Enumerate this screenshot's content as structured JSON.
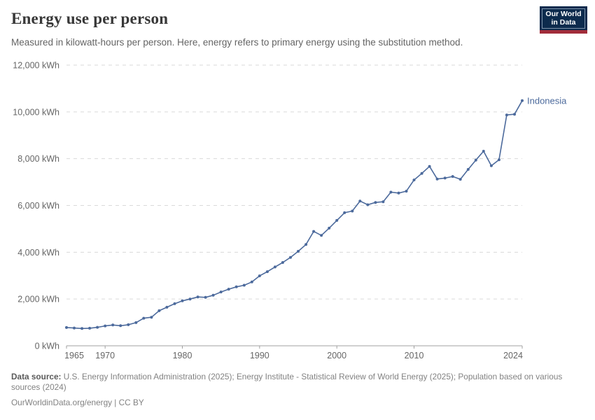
{
  "header": {
    "title": "Energy use per person",
    "subtitle": "Measured in kilowatt-hours per person. Here, energy refers to primary energy using the substitution method.",
    "logo_line1": "Our World",
    "logo_line2": "in Data"
  },
  "chart_data": {
    "type": "line",
    "title": "Energy use per person",
    "entity": "Indonesia",
    "unit": "kWh",
    "xlabel": "",
    "ylabel": "kWh per person",
    "xlim": [
      1965,
      2024
    ],
    "ylim": [
      0,
      12000
    ],
    "x_ticks": [
      1965,
      1970,
      1980,
      1990,
      2000,
      2010,
      2024
    ],
    "y_ticks": [
      0,
      2000,
      4000,
      6000,
      8000,
      10000,
      12000
    ],
    "grid": "horizontal-dashed",
    "legend_position": "end-of-line-label",
    "x": [
      1965,
      1966,
      1967,
      1968,
      1969,
      1970,
      1971,
      1972,
      1973,
      1974,
      1975,
      1976,
      1977,
      1978,
      1979,
      1980,
      1981,
      1982,
      1983,
      1984,
      1985,
      1986,
      1987,
      1988,
      1989,
      1990,
      1991,
      1992,
      1993,
      1994,
      1995,
      1996,
      1997,
      1998,
      1999,
      2000,
      2001,
      2002,
      2003,
      2004,
      2005,
      2006,
      2007,
      2008,
      2009,
      2010,
      2011,
      2012,
      2013,
      2014,
      2015,
      2016,
      2017,
      2018,
      2019,
      2020,
      2021,
      2022,
      2023,
      2024
    ],
    "series": [
      {
        "name": "Indonesia",
        "values": [
          780,
          760,
          740,
          750,
          790,
          850,
          890,
          860,
          900,
          990,
          1180,
          1220,
          1500,
          1650,
          1800,
          1920,
          2000,
          2090,
          2070,
          2160,
          2300,
          2420,
          2520,
          2590,
          2730,
          2990,
          3170,
          3370,
          3560,
          3780,
          4040,
          4330,
          4890,
          4720,
          5030,
          5360,
          5690,
          5760,
          6190,
          6030,
          6130,
          6160,
          6570,
          6530,
          6610,
          7090,
          7370,
          7670,
          7130,
          7170,
          7240,
          7120,
          7540,
          7940,
          8320,
          7700,
          7950,
          9870,
          9900,
          10480
        ]
      }
    ]
  },
  "footer": {
    "data_source_label": "Data source:",
    "data_source_text": " U.S. Energy Information Administration (2025); Energy Institute - Statistical Review of World Energy (2025); Population based on various sources (2024)",
    "license_line": "OurWorldinData.org/energy | CC BY"
  },
  "colors": {
    "line": "#4c6a9c",
    "grid": "#dadada",
    "axis": "#a0a0a0",
    "tick_text": "#666666",
    "title": "#383838",
    "subtitle": "#646464",
    "logo_navy": "#0d2b4d",
    "logo_red": "#a12c3a"
  }
}
